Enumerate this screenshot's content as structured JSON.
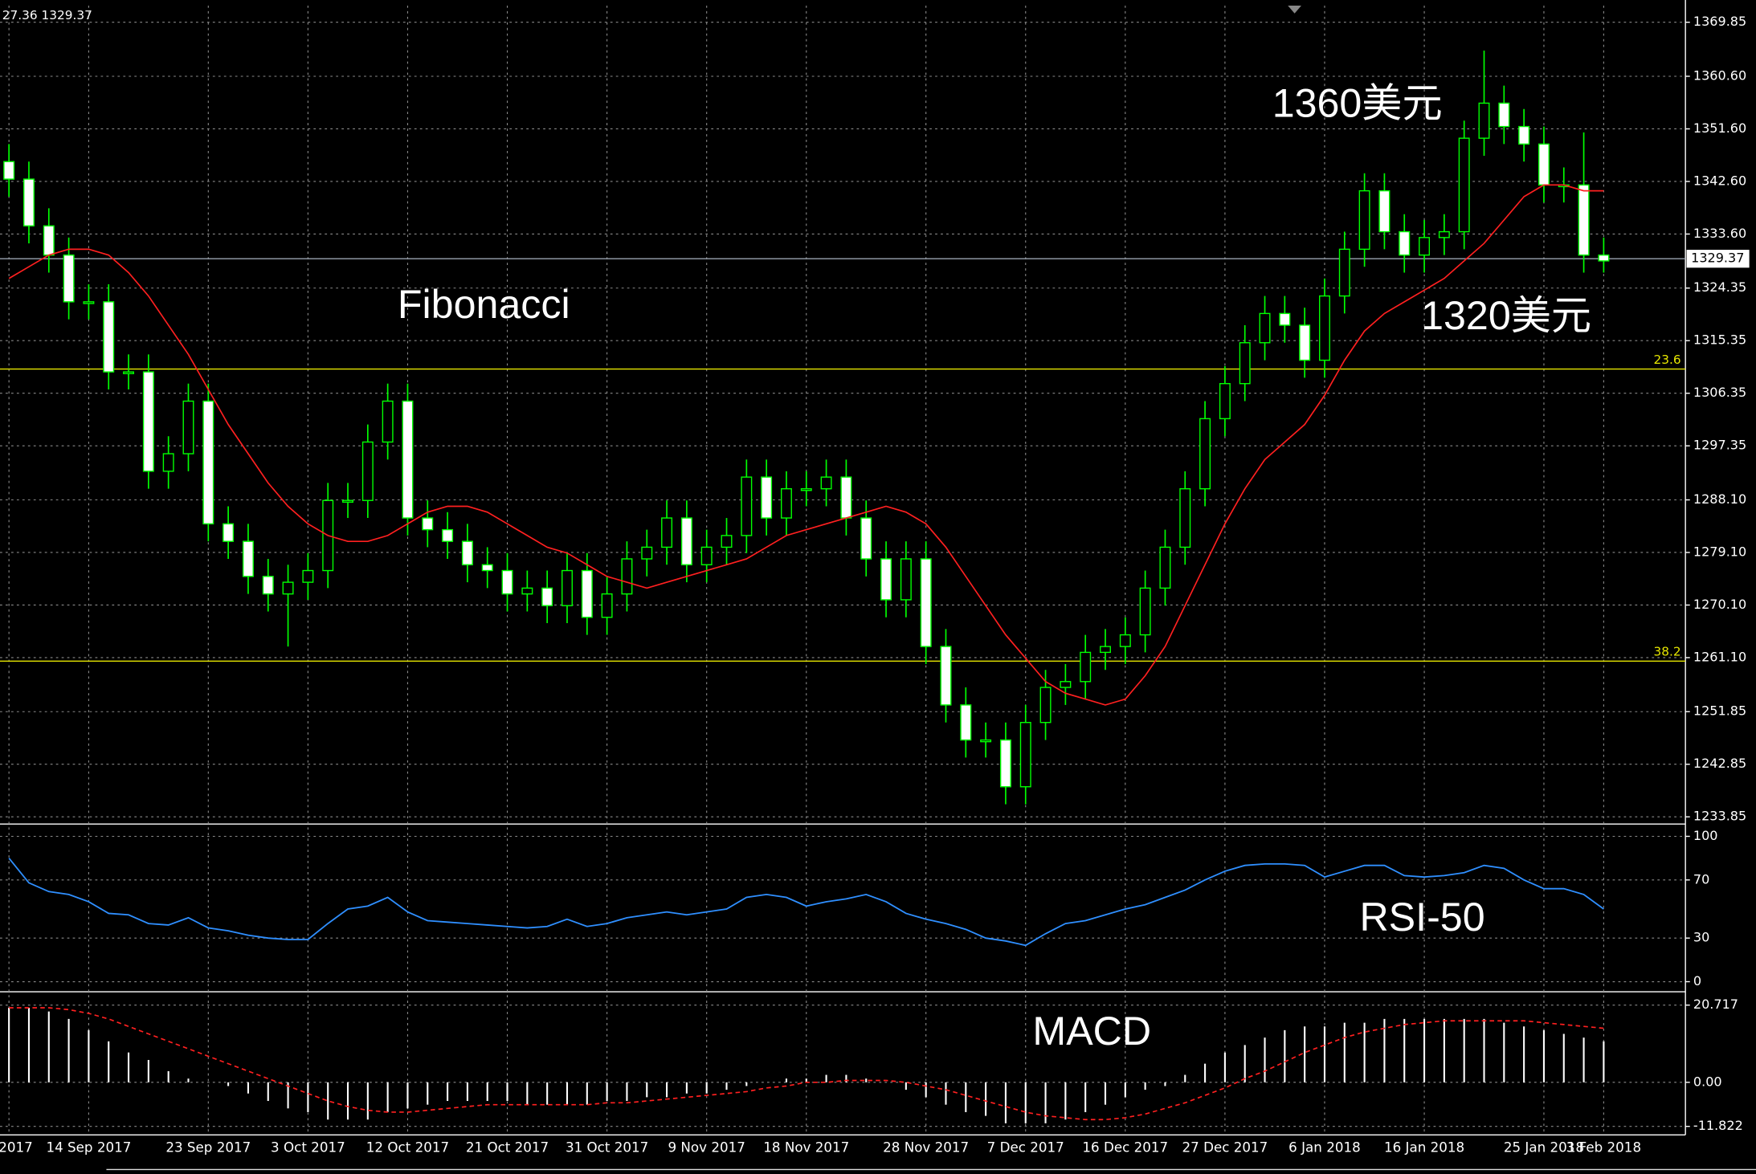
{
  "chart_data": [
    {
      "type": "candlestick",
      "header": "27.36 1329.37",
      "open": [
        1346,
        1343,
        1335,
        1330,
        1322,
        1322,
        1310,
        1310,
        1293,
        1296,
        1305,
        1284,
        1281,
        1275,
        1272,
        1274,
        1276,
        1288,
        1288,
        1298,
        1305,
        1285,
        1283,
        1281,
        1277,
        1276,
        1272,
        1273,
        1270,
        1276,
        1268,
        1272,
        1278,
        1280,
        1285,
        1277,
        1280,
        1282,
        1292,
        1285,
        1290,
        1290,
        1292,
        1285,
        1278,
        1271,
        1278,
        1263,
        1253,
        1247,
        1247,
        1239,
        1250,
        1256,
        1257,
        1262,
        1263,
        1265,
        1273,
        1280,
        1290,
        1302,
        1308,
        1315,
        1320,
        1318,
        1312,
        1323,
        1331,
        1341,
        1334,
        1330,
        1333,
        1334,
        1350,
        1356,
        1352,
        1349,
        1342,
        1342,
        1330
      ],
      "high": [
        1349,
        1346,
        1338,
        1333,
        1325,
        1325,
        1313,
        1313,
        1299,
        1308,
        1308,
        1287,
        1284,
        1278,
        1277,
        1279,
        1291,
        1291,
        1301,
        1308,
        1308,
        1288,
        1286,
        1284,
        1280,
        1279,
        1276,
        1276,
        1279,
        1279,
        1275,
        1281,
        1283,
        1288,
        1288,
        1283,
        1285,
        1295,
        1295,
        1293,
        1293,
        1295,
        1295,
        1288,
        1281,
        1281,
        1281,
        1266,
        1256,
        1250,
        1250,
        1253,
        1259,
        1260,
        1265,
        1266,
        1268,
        1276,
        1283,
        1293,
        1305,
        1311,
        1318,
        1323,
        1323,
        1321,
        1326,
        1334,
        1344,
        1344,
        1337,
        1336,
        1337,
        1353,
        1365,
        1359,
        1355,
        1352,
        1345,
        1351,
        1333
      ],
      "low": [
        1340,
        1332,
        1327,
        1319,
        1319,
        1307,
        1307,
        1290,
        1290,
        1293,
        1281,
        1278,
        1272,
        1269,
        1263,
        1271,
        1273,
        1285,
        1285,
        1295,
        1282,
        1280,
        1278,
        1274,
        1273,
        1269,
        1269,
        1267,
        1267,
        1265,
        1265,
        1269,
        1275,
        1277,
        1274,
        1274,
        1277,
        1279,
        1282,
        1282,
        1287,
        1287,
        1282,
        1275,
        1268,
        1268,
        1260,
        1250,
        1244,
        1244,
        1236,
        1236,
        1247,
        1253,
        1254,
        1259,
        1260,
        1262,
        1270,
        1277,
        1287,
        1299,
        1305,
        1312,
        1315,
        1309,
        1309,
        1320,
        1328,
        1331,
        1327,
        1327,
        1330,
        1331,
        1347,
        1349,
        1346,
        1339,
        1339,
        1327,
        1327
      ],
      "close": [
        1343,
        1335,
        1330,
        1322,
        1322,
        1310,
        1310,
        1293,
        1296,
        1305,
        1284,
        1281,
        1275,
        1272,
        1274,
        1276,
        1288,
        1288,
        1298,
        1305,
        1285,
        1283,
        1281,
        1277,
        1276,
        1272,
        1273,
        1270,
        1276,
        1268,
        1272,
        1278,
        1280,
        1285,
        1277,
        1280,
        1282,
        1292,
        1285,
        1290,
        1290,
        1292,
        1285,
        1278,
        1271,
        1278,
        1263,
        1253,
        1247,
        1247,
        1239,
        1250,
        1256,
        1257,
        1262,
        1263,
        1265,
        1273,
        1280,
        1290,
        1302,
        1308,
        1315,
        1320,
        1318,
        1312,
        1323,
        1331,
        1341,
        1334,
        1330,
        1333,
        1334,
        1350,
        1356,
        1352,
        1349,
        1342,
        1342,
        1330,
        1329
      ],
      "ma": {
        "color": "#ff2020",
        "values": [
          1326,
          1328,
          1330,
          1331,
          1331,
          1330,
          1327,
          1323,
          1318,
          1313,
          1307,
          1301,
          1296,
          1291,
          1287,
          1284,
          1282,
          1281,
          1281,
          1282,
          1284,
          1286,
          1287,
          1287,
          1286,
          1284,
          1282,
          1280,
          1279,
          1277,
          1275,
          1274,
          1273,
          1274,
          1275,
          1276,
          1277,
          1278,
          1280,
          1282,
          1283,
          1284,
          1285,
          1286,
          1287,
          1286,
          1284,
          1280,
          1275,
          1270,
          1265,
          1261,
          1257,
          1255,
          1254,
          1253,
          1254,
          1258,
          1263,
          1270,
          1277,
          1284,
          1290,
          1295,
          1298,
          1301,
          1306,
          1312,
          1317,
          1320,
          1322,
          1324,
          1326,
          1329,
          1332,
          1336,
          1340,
          1342,
          1342,
          1341,
          1341
        ]
      },
      "bull_color": "#000000",
      "bear_color": "#ffffff",
      "wick_color": "#00ff00",
      "ylim": [
        1233.0,
        1372.7
      ],
      "yticks": [
        1369.85,
        {
          "value": 1360.6,
          "label": "1360.60"
        },
        {
          "value": 1351.6,
          "label": "1351.60"
        },
        {
          "value": 1342.6,
          "label": "1342.60"
        },
        {
          "value": 1333.6,
          "label": "1333.60"
        },
        1324.35,
        1315.35,
        1306.35,
        1297.35,
        {
          "value": 1288.1,
          "label": "1288.10"
        },
        {
          "value": 1279.1,
          "label": "1279.10"
        },
        {
          "value": 1270.1,
          "label": "1270.10"
        },
        {
          "value": 1261.1,
          "label": "1261.10"
        },
        1251.85,
        1242.85,
        1233.85
      ],
      "grid": true,
      "current_price": 1329.37,
      "fib_levels": [
        {
          "label": "23.6",
          "price": 1310.5,
          "color": "#e6e600"
        },
        {
          "label": "38.2",
          "price": 1260.5,
          "color": "#e6e600"
        }
      ],
      "annotations": [
        "Fibonacci",
        "1360美元",
        "1320美元"
      ]
    },
    {
      "type": "line",
      "title": "RSI-50",
      "color": "#2f8fff",
      "values": [
        85,
        68,
        62,
        60,
        55,
        47,
        46,
        40,
        39,
        44,
        37,
        35,
        32,
        30,
        29,
        29,
        40,
        50,
        52,
        58,
        48,
        42,
        41,
        40,
        39,
        38,
        37,
        38,
        43,
        38,
        40,
        44,
        46,
        48,
        46,
        48,
        50,
        58,
        60,
        58,
        52,
        55,
        57,
        60,
        55,
        47,
        43,
        40,
        36,
        30,
        28,
        25,
        33,
        40,
        42,
        46,
        50,
        53,
        58,
        63,
        70,
        76,
        80,
        81,
        81,
        80,
        72,
        76,
        80,
        80,
        73,
        72,
        73,
        75,
        80,
        78,
        70,
        64,
        64,
        60,
        50
      ],
      "ylim": [
        0,
        100
      ],
      "yticks": [
        100,
        70,
        30,
        0
      ],
      "grid": true
    },
    {
      "type": "bar",
      "title": "MACD",
      "color": "#ffffff",
      "categories": [
        "2017",
        null,
        null,
        null,
        "14 Sep 2017",
        null,
        null,
        null,
        null,
        null,
        "23 Sep 2017",
        null,
        null,
        null,
        null,
        "3 Oct 2017",
        null,
        null,
        null,
        null,
        "12 Oct 2017",
        null,
        null,
        null,
        null,
        "21 Oct 2017",
        null,
        null,
        null,
        null,
        "31 Oct 2017",
        null,
        null,
        null,
        null,
        "9 Nov 2017",
        null,
        null,
        null,
        null,
        "18 Nov 2017",
        null,
        null,
        null,
        null,
        null,
        "28 Nov 2017",
        null,
        null,
        null,
        null,
        "7 Dec 2017",
        null,
        null,
        null,
        null,
        "16 Dec 2017",
        null,
        null,
        null,
        null,
        "27 Dec 2017",
        null,
        null,
        null,
        null,
        "6 Jan 2018",
        null,
        null,
        null,
        null,
        "16 Jan 2018",
        null,
        null,
        null,
        null,
        null,
        "25 Jan 2018",
        null,
        null,
        "3 Feb 2018"
      ],
      "values": [
        20,
        20,
        19,
        17,
        14,
        11,
        8,
        6,
        3,
        1,
        0,
        -1,
        -3,
        -5,
        -7,
        -8,
        -10,
        -10,
        -10,
        -8,
        -7,
        -6,
        -5,
        -5,
        -5,
        -5,
        -6,
        -6,
        -6,
        -6,
        -5,
        -5,
        -4,
        -4,
        -3,
        -3,
        -2,
        -1,
        0,
        1,
        1,
        2,
        2,
        1,
        0,
        -2,
        -4,
        -6,
        -8,
        -9,
        -11,
        -11,
        -11,
        -10,
        -8,
        -6,
        -4,
        -2,
        -1,
        2,
        5,
        8,
        10,
        12,
        14,
        15,
        15,
        16,
        16,
        17,
        17,
        17,
        17,
        17,
        17,
        16,
        15,
        14,
        13,
        12,
        11
      ],
      "signal": {
        "color": "#ff2020",
        "values": [
          20,
          20,
          20,
          19.5,
          18.5,
          17,
          15,
          13,
          11,
          9,
          7,
          5,
          3,
          1,
          -1,
          -3,
          -5,
          -6.5,
          -7.5,
          -8,
          -8,
          -7.5,
          -7,
          -6.5,
          -6,
          -6,
          -6,
          -6,
          -6,
          -6,
          -5.5,
          -5.5,
          -5,
          -4.5,
          -4,
          -3.5,
          -3,
          -2.5,
          -1.5,
          -1,
          0,
          0,
          0.5,
          0.5,
          0.5,
          0,
          -1,
          -2,
          -3.5,
          -5,
          -6.5,
          -8,
          -9,
          -9.5,
          -10,
          -10,
          -9.5,
          -8.5,
          -7,
          -5.5,
          -3.5,
          -1.5,
          1,
          3,
          5.5,
          8,
          10,
          12,
          13.5,
          14.5,
          15.5,
          16,
          16.5,
          16.5,
          16.5,
          16.5,
          16.5,
          16,
          15.5,
          15,
          14.5
        ]
      },
      "ylim": [
        -14.1,
        22.5
      ],
      "yticks": [
        20.717,
        {
          "value": 0,
          "label": "0.00"
        },
        -11.822
      ],
      "grid": true
    }
  ]
}
